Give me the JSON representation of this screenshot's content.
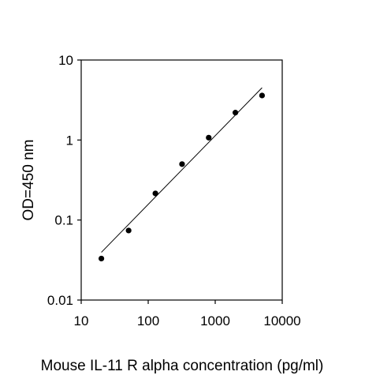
{
  "chart_data": {
    "type": "scatter",
    "x_scale": "log",
    "y_scale": "log",
    "xlabel": "Mouse IL-11 R alpha  concentration (pg/ml)",
    "ylabel": "OD=450 nm",
    "xlim": [
      10,
      10000
    ],
    "ylim": [
      0.01,
      10
    ],
    "x_ticks": [
      "10",
      "100",
      "1000",
      "10000"
    ],
    "y_ticks": [
      "0.01",
      "0.1",
      "1",
      "10"
    ],
    "grid": false,
    "series": [
      {
        "type": "scatter",
        "points": [
          {
            "x": 20,
            "y": 0.033
          },
          {
            "x": 51,
            "y": 0.074
          },
          {
            "x": 128,
            "y": 0.215
          },
          {
            "x": 320,
            "y": 0.5
          },
          {
            "x": 800,
            "y": 1.07
          },
          {
            "x": 2000,
            "y": 2.2
          },
          {
            "x": 5000,
            "y": 3.6
          }
        ]
      },
      {
        "type": "line",
        "points": [
          {
            "x": 20,
            "y": 0.0395
          },
          {
            "x": 5000,
            "y": 4.5
          }
        ]
      }
    ]
  }
}
